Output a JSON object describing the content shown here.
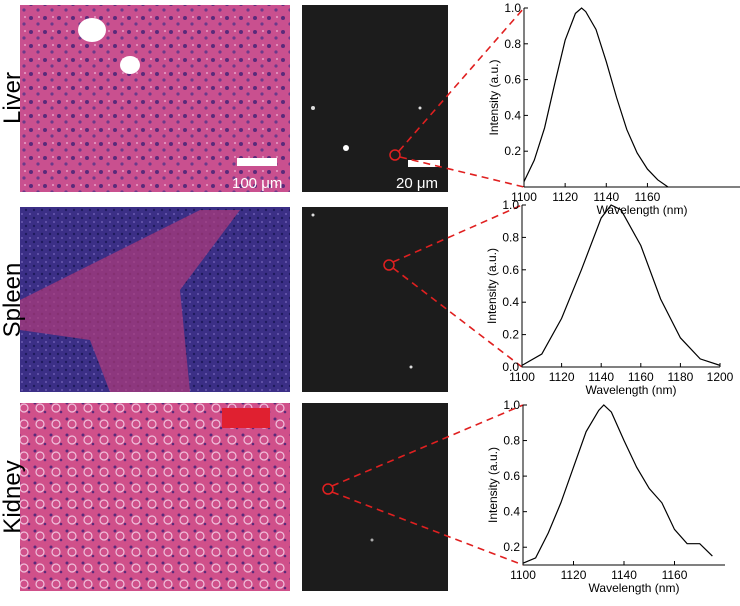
{
  "rows": [
    "Liver",
    "Spleen",
    "Kidney"
  ],
  "scale_bars": [
    "100 μm",
    "20 μm"
  ],
  "chart_data": [
    {
      "type": "line",
      "xlabel": "Wavelength (nm)",
      "ylabel": "Intensity (a.u.)",
      "x": [
        1100,
        1105,
        1110,
        1115,
        1120,
        1125,
        1128,
        1130,
        1135,
        1140,
        1145,
        1150,
        1155,
        1160,
        1165,
        1170
      ],
      "values": [
        0.03,
        0.15,
        0.33,
        0.58,
        0.82,
        0.97,
        1.0,
        0.98,
        0.88,
        0.7,
        0.5,
        0.32,
        0.19,
        0.1,
        0.04,
        0.0
      ],
      "color": "#000000",
      "xlim": [
        1100,
        1205
      ],
      "ylim": [
        0,
        1
      ],
      "xticks": [
        1100,
        1120,
        1140,
        1160
      ],
      "yticks": [
        0.2,
        0.4,
        0.6,
        0.8,
        {
          "value": 1,
          "label": "1.0"
        }
      ]
    },
    {
      "type": "line",
      "xlabel": "Wavelength (nm)",
      "ylabel": "Intensity (a.u.)",
      "x": [
        1100,
        1110,
        1120,
        1130,
        1140,
        1145,
        1150,
        1160,
        1170,
        1180,
        1190,
        1200
      ],
      "values": [
        0.01,
        0.08,
        0.3,
        0.6,
        0.92,
        1.0,
        0.97,
        0.75,
        0.42,
        0.18,
        0.05,
        0.01
      ],
      "color": "#000000",
      "xlim": [
        1100,
        1200
      ],
      "ylim": [
        0,
        1
      ],
      "xticks": [
        1100,
        1120,
        1140,
        1160,
        1180,
        1200
      ],
      "yticks": [
        {
          "value": 0,
          "label": "0.0"
        },
        0.2,
        0.4,
        0.6,
        0.8,
        {
          "value": 1,
          "label": "1.0"
        }
      ]
    },
    {
      "type": "line",
      "xlabel": "Wavelength (nm)",
      "ylabel": "Intensity (a.u.)",
      "x": [
        1100,
        1105,
        1110,
        1115,
        1120,
        1125,
        1130,
        1132,
        1135,
        1140,
        1145,
        1150,
        1155,
        1160,
        1165,
        1170,
        1175
      ],
      "values": [
        0.11,
        0.14,
        0.28,
        0.45,
        0.65,
        0.85,
        0.97,
        1.0,
        0.96,
        0.8,
        0.65,
        0.53,
        0.45,
        0.3,
        0.22,
        0.22,
        0.15
      ],
      "color": "#000000",
      "xlim": [
        1100,
        1180
      ],
      "ylim": [
        0.1,
        1
      ],
      "xticks": [
        1100,
        1120,
        1140,
        1160
      ],
      "yticks": [
        0.2,
        0.4,
        0.6,
        0.8,
        {
          "value": 1,
          "label": "1.0"
        }
      ]
    }
  ]
}
